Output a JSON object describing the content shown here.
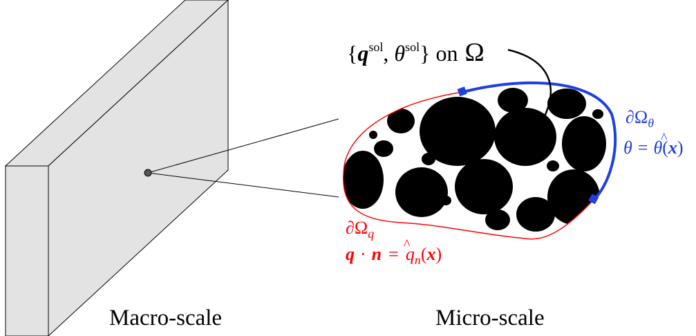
{
  "colors": {
    "slab_face": "#e3e3e3",
    "slab_stroke": "#000000",
    "neumann": "#ff0000",
    "dirichlet": "#1f3fe0",
    "particle": "#000000",
    "point": "#555555"
  },
  "captions": {
    "macro": "Macro-scale",
    "micro": "Micro-scale"
  },
  "domain_label": {
    "q_sym": "q",
    "theta_sym": "θ",
    "sol": "sol",
    "on": "on",
    "omega": "Ω"
  },
  "dirichlet_label": {
    "boundary_d": "∂",
    "boundary_omega": "Ω",
    "boundary_sub": "θ",
    "lhs": "θ",
    "eq": "=",
    "rhs_theta": "θ",
    "rhs_hat": "^",
    "x": "x"
  },
  "neumann_label": {
    "boundary_d": "∂",
    "boundary_omega": "Ω",
    "boundary_sub": "q",
    "q": "q",
    "dot": "·",
    "n": "n",
    "eq": "=",
    "qhat": "q",
    "hat": "^",
    "sub_n": "n",
    "x": "x"
  }
}
